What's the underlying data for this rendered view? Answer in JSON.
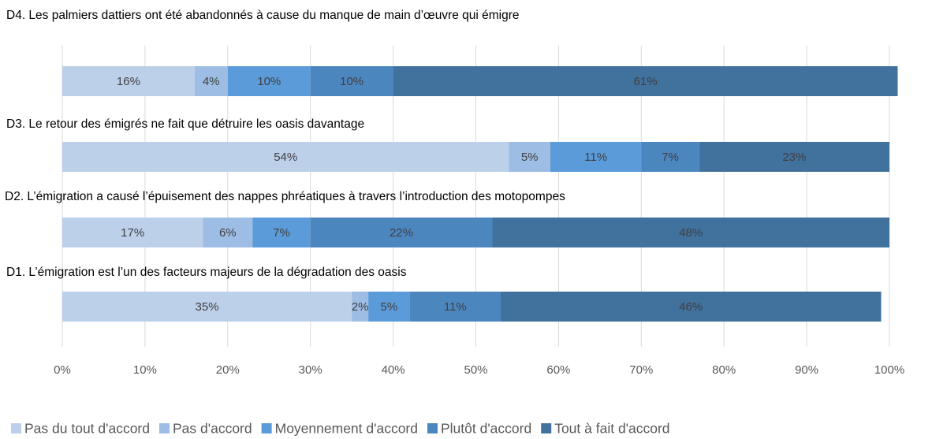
{
  "chart_data": {
    "type": "stacked_barh",
    "categories": [
      "D4. Les palmiers dattiers ont été abandonnés à cause du manque de main d’œuvre qui émigre",
      "D3. Le retour des émigrés ne fait que détruire les oasis davantage",
      "D2. L’émigration a causé l’épuisement des nappes phréatiques à travers l’introduction des motopompes",
      "D1. L’émigration est l’un des facteurs majeurs de la dégradation des oasis"
    ],
    "series": [
      {
        "name": "Pas du tout d'accord",
        "color": "#bdd0ea",
        "values": [
          16,
          54,
          17,
          35
        ],
        "value_labels": [
          "16%",
          "54%",
          "17%",
          "35%"
        ]
      },
      {
        "name": "Pas d'accord",
        "color": "#9dbde4",
        "values": [
          4,
          5,
          6,
          2
        ],
        "value_labels": [
          "4%",
          "5%",
          "6%",
          "2%"
        ]
      },
      {
        "name": "Moyennement d'accord",
        "color": "#5b9bd9",
        "values": [
          10,
          11,
          7,
          5
        ],
        "value_labels": [
          "10%",
          "11%",
          "7%",
          "5%"
        ]
      },
      {
        "name": "Plutôt d'accord",
        "color": "#4c86bf",
        "values": [
          10,
          7,
          22,
          11
        ],
        "value_labels": [
          "10%",
          "7%",
          "22%",
          "11%"
        ]
      },
      {
        "name": "Tout à fait d'accord",
        "color": "#41719d",
        "values": [
          61,
          23,
          48,
          46
        ],
        "value_labels": [
          "61%",
          "23%",
          "48%",
          "46%"
        ]
      }
    ],
    "xlim": [
      0,
      100
    ],
    "xticks": [
      {
        "value": 0,
        "label": "0%"
      },
      {
        "value": 10,
        "label": "10%"
      },
      {
        "value": 20,
        "label": "20%"
      },
      {
        "value": 30,
        "label": "30%"
      },
      {
        "value": 40,
        "label": "40%"
      },
      {
        "value": 50,
        "label": "50%"
      },
      {
        "value": 60,
        "label": "60%"
      },
      {
        "value": 70,
        "label": "70%"
      },
      {
        "value": 80,
        "label": "80%"
      },
      {
        "value": 90,
        "label": "90%"
      },
      {
        "value": 100,
        "label": "100%"
      }
    ],
    "grid": true
  }
}
